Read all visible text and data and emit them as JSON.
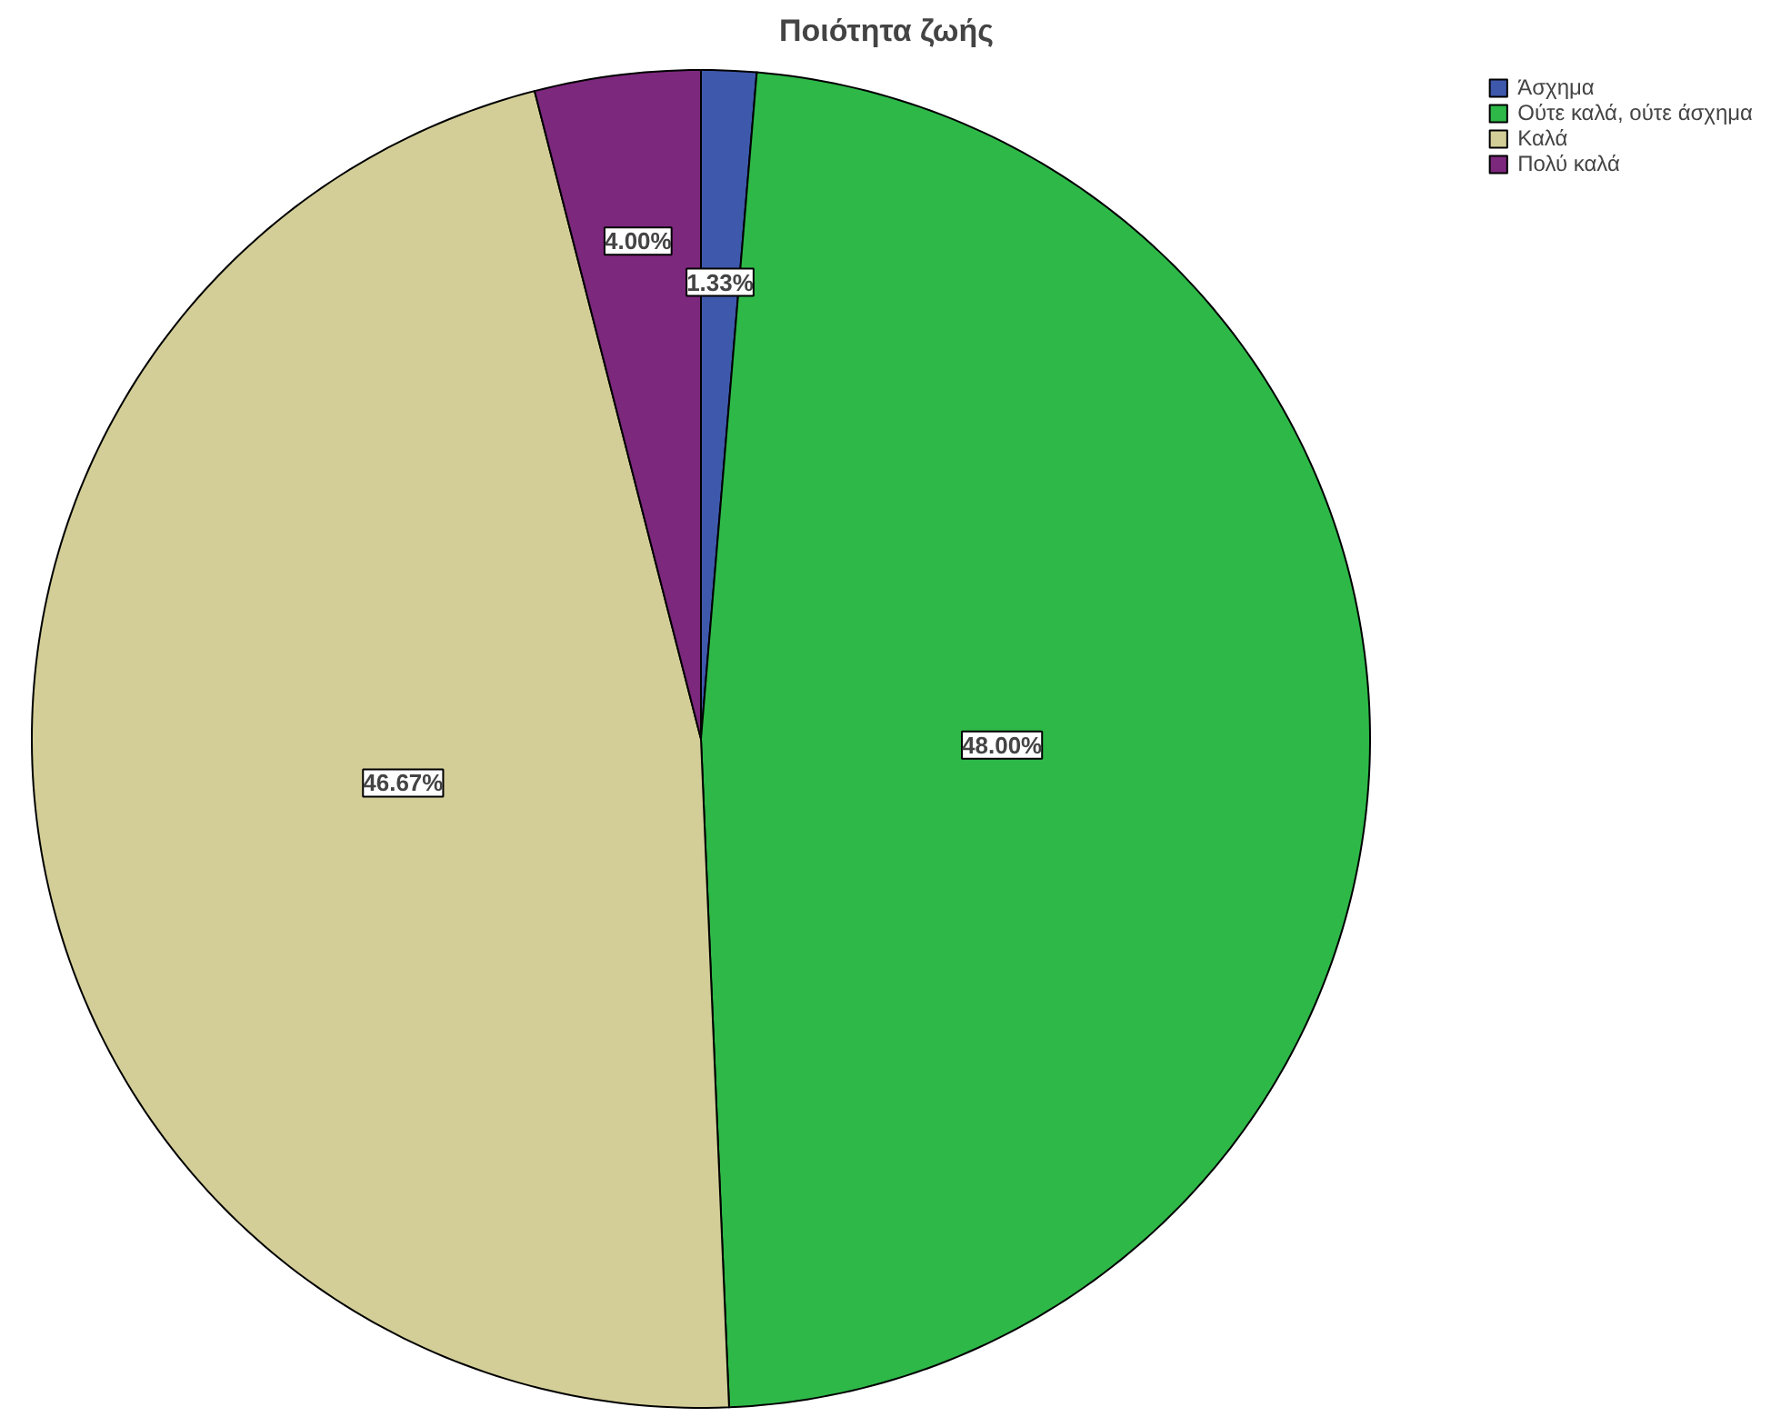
{
  "chart_data": {
    "type": "pie",
    "title": "Ποιότητα ζωής",
    "categories": [
      "Άσχημα",
      "Ούτε καλά, ούτε άσχημα",
      "Καλά",
      "Πολύ καλά"
    ],
    "values": [
      1.33,
      48.0,
      46.67,
      4.0
    ],
    "colors": [
      "#3e58ac",
      "#2eb848",
      "#d3ce97",
      "#7c287d"
    ],
    "value_labels": [
      "1.33%",
      "48.00%",
      "46.67%",
      "4.00%"
    ],
    "legend": "top right"
  }
}
